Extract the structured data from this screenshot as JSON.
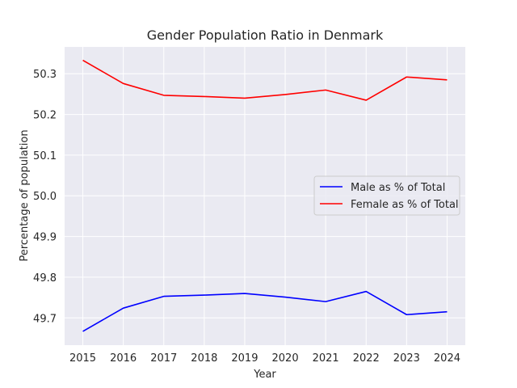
{
  "chart_data": {
    "type": "line",
    "title": "Gender Population Ratio in Denmark",
    "xlabel": "Year",
    "ylabel": "Percentage of population",
    "x": [
      2015,
      2016,
      2017,
      2018,
      2019,
      2020,
      2021,
      2022,
      2023,
      2024
    ],
    "xlim": [
      2014.55,
      2024.45
    ],
    "ylim": [
      49.633,
      50.366
    ],
    "yticks": [
      49.7,
      49.8,
      49.9,
      50.0,
      50.1,
      50.2,
      50.3
    ],
    "ytick_labels": [
      "49.7",
      "49.8",
      "49.9",
      "50.0",
      "50.1",
      "50.2",
      "50.3"
    ],
    "grid": true,
    "legend_position": "center-right",
    "background": "#eaeaf2",
    "series": [
      {
        "name": "Male as % of Total",
        "color": "#0000ff",
        "values": [
          49.667,
          49.724,
          49.753,
          49.756,
          49.76,
          49.751,
          49.74,
          49.765,
          49.708,
          49.715
        ]
      },
      {
        "name": "Female as % of Total",
        "color": "#ff0000",
        "values": [
          50.333,
          50.276,
          50.247,
          50.244,
          50.24,
          50.249,
          50.26,
          50.235,
          50.292,
          50.285
        ]
      }
    ]
  }
}
